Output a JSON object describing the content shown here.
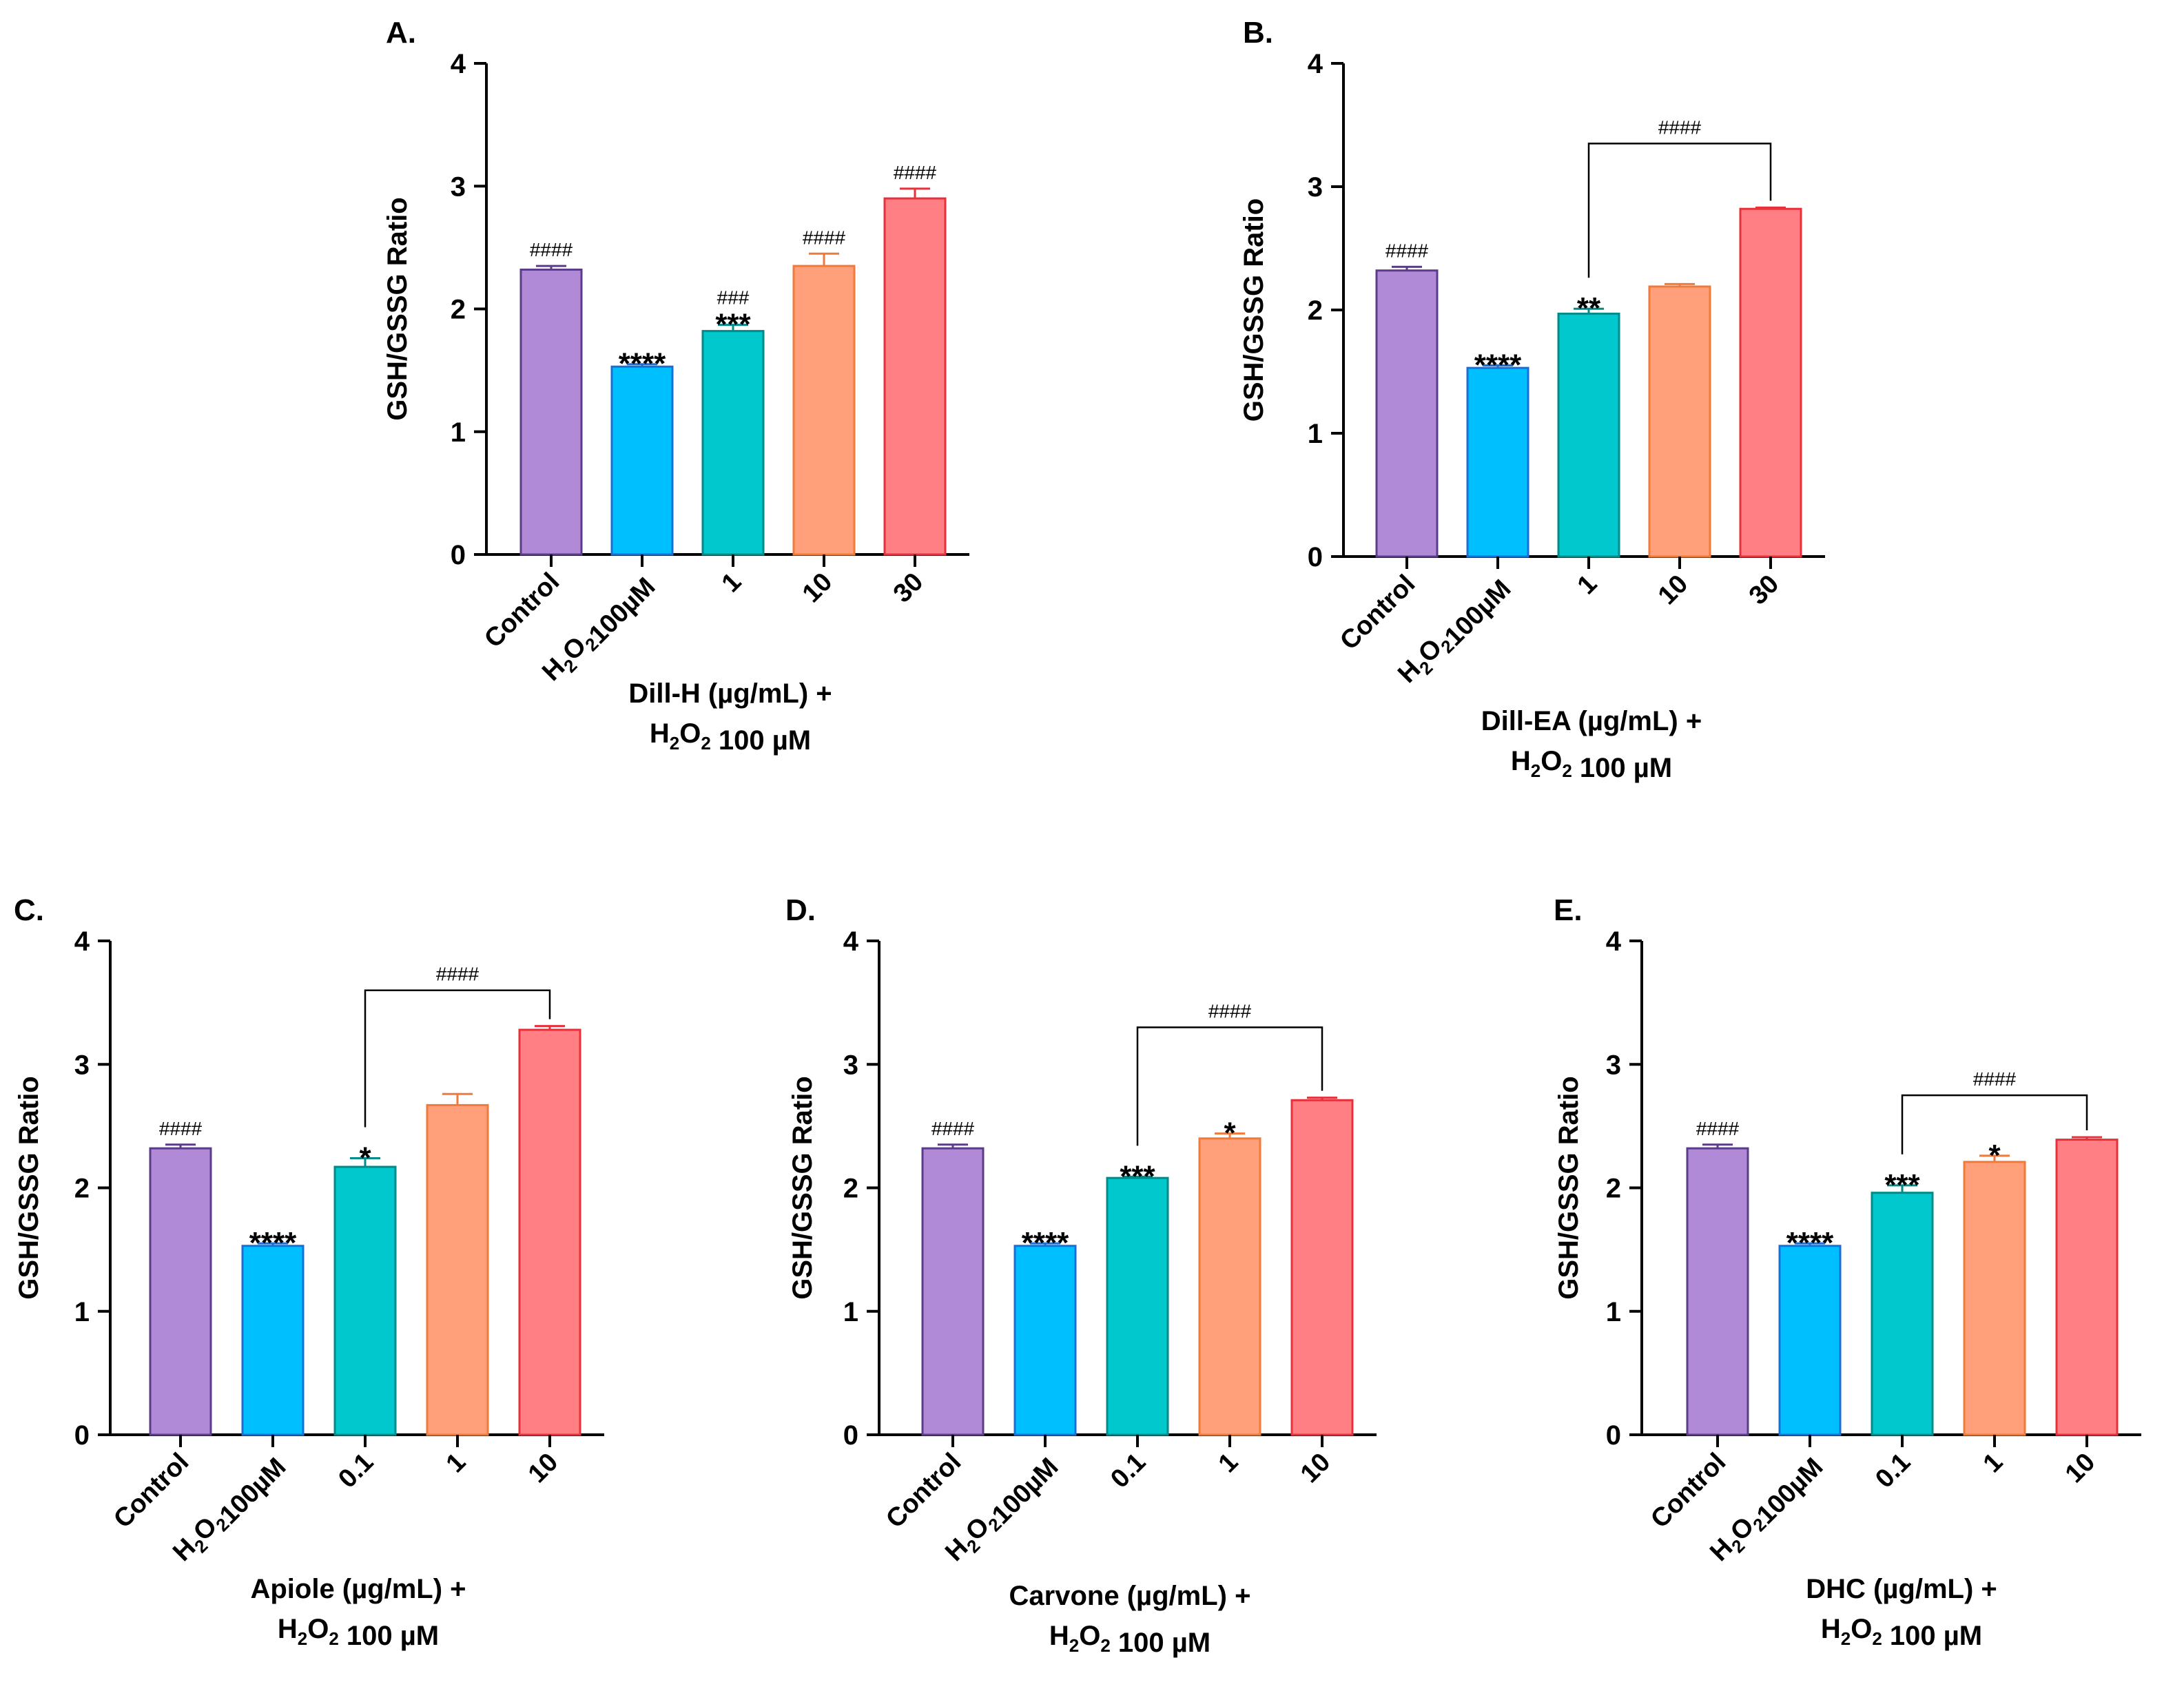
{
  "chart_data": [
    {
      "type": "bar",
      "panel": "A.",
      "ylabel": "GSH/GSSG Ratio",
      "ylim": [
        0,
        4
      ],
      "yticks": [
        0,
        1,
        2,
        3,
        4
      ],
      "categories": [
        "Control",
        "H2O2100µM",
        "1",
        "10",
        "30"
      ],
      "values": [
        2.32,
        1.53,
        1.82,
        2.35,
        2.9
      ],
      "errors": [
        0.03,
        0.02,
        0.05,
        0.1,
        0.08
      ],
      "colors": [
        "#b08ad6",
        "#00bfff",
        "#00c8cc",
        "#ffa07a",
        "#ff7f84"
      ],
      "edge_colors": [
        "#5b3c8a",
        "#1a6fd6",
        "#008b8b",
        "#f07a3a",
        "#e8303a"
      ],
      "annotations": [
        "####",
        "****",
        "***",
        "####",
        "####"
      ],
      "annotations_top": [
        "",
        "",
        "###",
        "",
        ""
      ],
      "bracket": null,
      "caption": [
        "Dill-H (µg/mL) +",
        "H2O2 100 µM"
      ]
    },
    {
      "type": "bar",
      "panel": "B.",
      "ylabel": "GSH/GSSG Ratio",
      "ylim": [
        0,
        4
      ],
      "yticks": [
        0,
        1,
        2,
        3,
        4
      ],
      "categories": [
        "Control",
        "H2O2100µM",
        "1",
        "10",
        "30"
      ],
      "values": [
        2.32,
        1.53,
        1.97,
        2.19,
        2.82
      ],
      "errors": [
        0.03,
        0.02,
        0.04,
        0.02,
        0.01
      ],
      "colors": [
        "#b08ad6",
        "#00bfff",
        "#00c8cc",
        "#ffa07a",
        "#ff7f84"
      ],
      "edge_colors": [
        "#5b3c8a",
        "#1a6fd6",
        "#008b8b",
        "#f07a3a",
        "#e8303a"
      ],
      "annotations": [
        "####",
        "****",
        "**",
        "",
        ""
      ],
      "annotations_top": [
        "",
        "",
        "",
        "",
        ""
      ],
      "bracket": {
        "from": 2,
        "to": 4,
        "level": 3.35,
        "label": "####"
      },
      "caption": [
        "Dill-EA (µg/mL) +",
        "H2O2 100 µM"
      ]
    },
    {
      "type": "bar",
      "panel": "C.",
      "ylabel": "GSH/GSSG Ratio",
      "ylim": [
        0,
        4
      ],
      "yticks": [
        0,
        1,
        2,
        3,
        4
      ],
      "categories": [
        "Control",
        "H2O2100µM",
        "0.1",
        "1",
        "10"
      ],
      "values": [
        2.32,
        1.53,
        2.17,
        2.67,
        3.28
      ],
      "errors": [
        0.03,
        0.02,
        0.07,
        0.09,
        0.03
      ],
      "colors": [
        "#b08ad6",
        "#00bfff",
        "#00c8cc",
        "#ffa07a",
        "#ff7f84"
      ],
      "edge_colors": [
        "#5b3c8a",
        "#1a6fd6",
        "#008b8b",
        "#f07a3a",
        "#e8303a"
      ],
      "annotations": [
        "####",
        "****",
        "*",
        "",
        ""
      ],
      "annotations_top": [
        "",
        "",
        "",
        "",
        ""
      ],
      "bracket": {
        "from": 2,
        "to": 4,
        "level": 3.6,
        "label": "####"
      },
      "caption": [
        "Apiole (µg/mL) +",
        "H2O2 100 µM"
      ]
    },
    {
      "type": "bar",
      "panel": "D.",
      "ylabel": "GSH/GSSG Ratio",
      "ylim": [
        0,
        4
      ],
      "yticks": [
        0,
        1,
        2,
        3,
        4
      ],
      "categories": [
        "Control",
        "H2O2100µM",
        "0.1",
        "1",
        "10"
      ],
      "values": [
        2.32,
        1.53,
        2.08,
        2.4,
        2.71
      ],
      "errors": [
        0.03,
        0.02,
        0.01,
        0.04,
        0.02
      ],
      "colors": [
        "#b08ad6",
        "#00bfff",
        "#00c8cc",
        "#ffa07a",
        "#ff7f84"
      ],
      "edge_colors": [
        "#5b3c8a",
        "#1a6fd6",
        "#008b8b",
        "#f07a3a",
        "#e8303a"
      ],
      "annotations": [
        "####",
        "****",
        "***",
        "*",
        ""
      ],
      "annotations_top": [
        "",
        "",
        "",
        "",
        ""
      ],
      "bracket": {
        "from": 2,
        "to": 4,
        "level": 3.3,
        "label": "####"
      },
      "caption": [
        "Carvone (µg/mL) +",
        "H2O2 100 µM"
      ]
    },
    {
      "type": "bar",
      "panel": "E.",
      "ylabel": "GSH/GSSG Ratio",
      "ylim": [
        0,
        4
      ],
      "yticks": [
        0,
        1,
        2,
        3,
        4
      ],
      "categories": [
        "Control",
        "H2O2100µM",
        "0.1",
        "1",
        "10"
      ],
      "values": [
        2.32,
        1.53,
        1.96,
        2.21,
        2.39
      ],
      "errors": [
        0.03,
        0.02,
        0.06,
        0.05,
        0.02
      ],
      "colors": [
        "#b08ad6",
        "#00bfff",
        "#00c8cc",
        "#ffa07a",
        "#ff7f84"
      ],
      "edge_colors": [
        "#5b3c8a",
        "#1a6fd6",
        "#008b8b",
        "#f07a3a",
        "#e8303a"
      ],
      "annotations": [
        "####",
        "****",
        "***",
        "*",
        ""
      ],
      "annotations_top": [
        "",
        "",
        "",
        "",
        ""
      ],
      "bracket": {
        "from": 2,
        "to": 4,
        "level": 2.75,
        "label": "####"
      },
      "caption": [
        "DHC (µg/mL) +",
        "H2O2 100 µM"
      ]
    }
  ]
}
